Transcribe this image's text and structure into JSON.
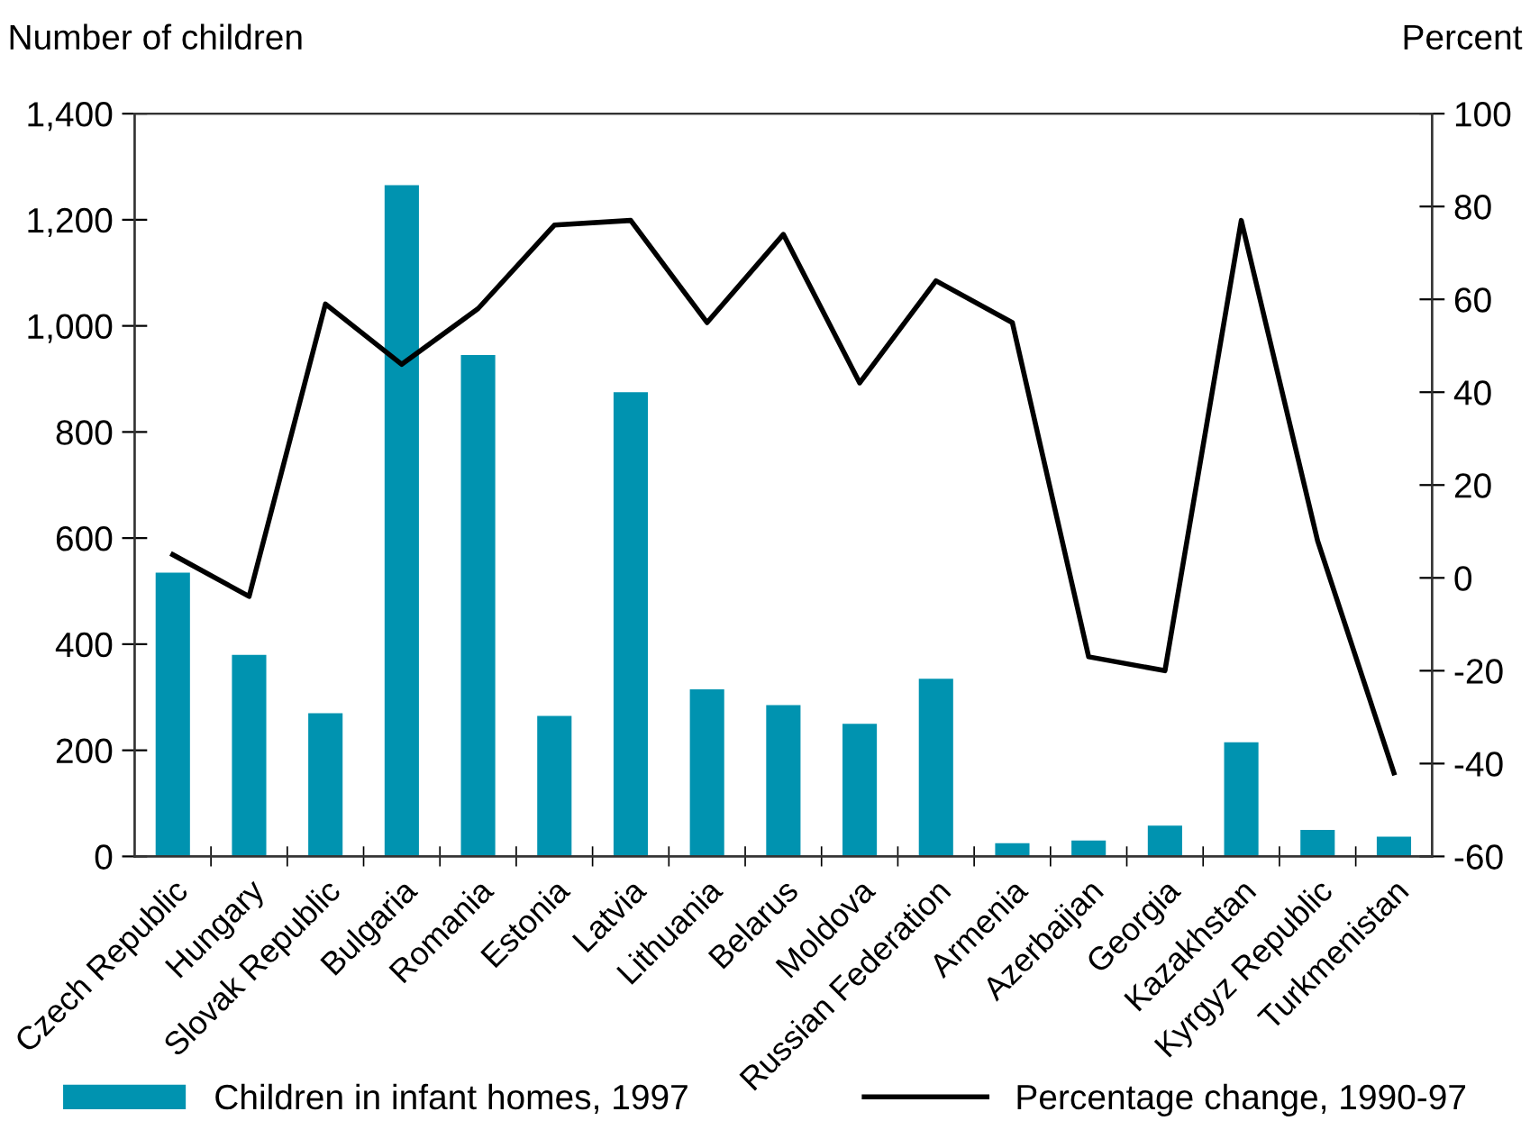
{
  "chart_data": {
    "type": "bar",
    "categories": [
      "Czech Republic",
      "Hungary",
      "Slovak Republic",
      "Bulgaria",
      "Romania",
      "Estonia",
      "Latvia",
      "Lithuania",
      "Belarus",
      "Moldova",
      "Russian Federation",
      "Armenia",
      "Azerbaijan",
      "Georgia",
      "Kazakhstan",
      "Kyrgyz Republic",
      "Turkmenistan"
    ],
    "series": [
      {
        "name": "Children in infant homes, 1997",
        "color": "#0093b0",
        "values": [
          535,
          380,
          270,
          1265,
          945,
          265,
          875,
          315,
          285,
          250,
          335,
          25,
          30,
          58,
          215,
          50,
          37
        ]
      },
      {
        "name": "Percentage change, 1990-97",
        "type": "line",
        "axis": "y2",
        "color": "#000000",
        "values": [
          5,
          -4,
          59,
          46,
          58,
          76,
          77,
          55,
          74,
          42,
          64,
          55,
          -17,
          -20,
          77,
          8,
          -42
        ]
      }
    ],
    "ylabel": "Number of children",
    "y2label": "Percent",
    "ylim": [
      0,
      1400
    ],
    "yticks": [
      0,
      200,
      400,
      600,
      800,
      {
        "value": 1000,
        "label": "1,000"
      },
      {
        "value": 1200,
        "label": "1,200"
      },
      {
        "value": 1400,
        "label": "1,400"
      }
    ],
    "y2lim": [
      -60,
      100
    ],
    "y2ticks": [
      -60,
      -40,
      -20,
      0,
      20,
      40,
      60,
      80,
      100
    ],
    "grid": false,
    "legend": "bottom",
    "marker": "none",
    "line_style": "solid"
  }
}
